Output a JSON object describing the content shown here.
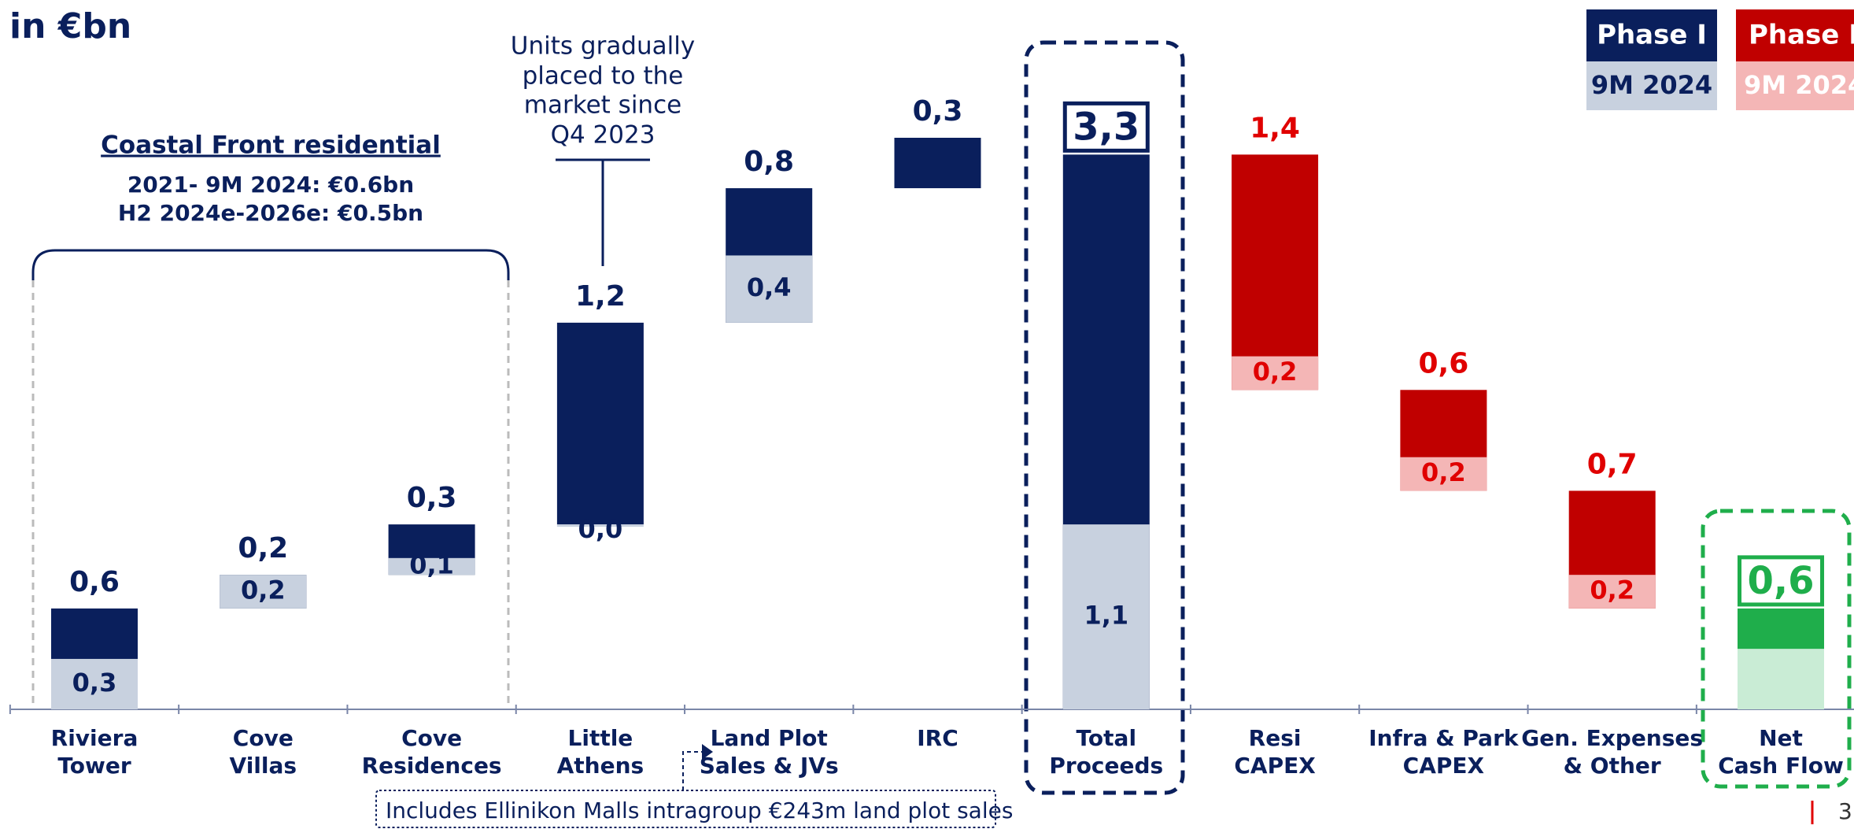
{
  "chart_data": {
    "type": "waterfall",
    "title": "in €bn",
    "categories": [
      [
        "Riviera",
        "Tower"
      ],
      [
        "Cove",
        "Villas"
      ],
      [
        "Cove",
        "Residences"
      ],
      [
        "Little",
        "Athens"
      ],
      [
        "Land Plot",
        "Sales & JVs"
      ],
      [
        "IRC"
      ],
      [
        "Total",
        "Proceeds"
      ],
      [
        "Resi",
        "CAPEX"
      ],
      [
        "Infra & Park",
        "CAPEX"
      ],
      [
        "Gen. Expenses",
        "& Other"
      ],
      [
        "Net",
        "Cash Flow"
      ]
    ],
    "kinds": [
      "up",
      "up",
      "up",
      "up",
      "up",
      "up",
      "total",
      "down",
      "down",
      "down",
      "net"
    ],
    "series": [
      {
        "name": "Phase I",
        "color": "#0a1f5c",
        "values": [
          0.6,
          0.2,
          0.3,
          1.2,
          0.8,
          0.3,
          3.3,
          1.4,
          0.6,
          0.7,
          0.6
        ],
        "value_labels": [
          "0,6",
          "0,2",
          "0,3",
          "1,2",
          "0,8",
          "0,3",
          "3,3",
          "1,4",
          "0,6",
          "0,7",
          "0,6"
        ]
      },
      {
        "name": "9M 2024",
        "color": "#c8d1df",
        "values": [
          0.3,
          0.2,
          0.1,
          0.0,
          0.4,
          null,
          1.1,
          0.2,
          0.2,
          0.2,
          0.36
        ],
        "value_labels": [
          "0,3",
          "0,2",
          "0,1",
          "0,0",
          "0,4",
          null,
          "1,1",
          "0,2",
          "0,2",
          "0,2",
          null
        ]
      }
    ],
    "down_colors": [
      "#c00000",
      "#f4b6b6"
    ],
    "net_colors": [
      "#1fae4b",
      "#c9ecd5"
    ],
    "annotations": {
      "units_note": [
        "Units gradually",
        "placed to the",
        "market since",
        "Q4 2023"
      ],
      "coastal_title": "Coastal Front residential",
      "coastal_lines": [
        "2021- 9M 2024: €0.6bn",
        "H2 2024e-2026e: €0.5bn"
      ],
      "footnote": "Includes Ellinikon Malls intragroup €243m land plot sales"
    },
    "page_number": "3"
  }
}
